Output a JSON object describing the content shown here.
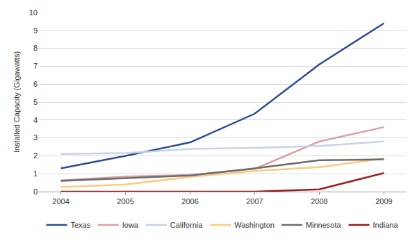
{
  "chart_data": {
    "type": "line",
    "y_label": "Installed Capacity (Gigawatts)",
    "categories": [
      "2004",
      "2005",
      "2006",
      "2007",
      "2008",
      "2009"
    ],
    "series": [
      {
        "name": "Texas",
        "color": "#2b4a96",
        "values": [
          1.3,
          2.0,
          2.75,
          4.35,
          7.1,
          9.4
        ]
      },
      {
        "name": "Iowa",
        "color": "#d9a0a4",
        "values": [
          0.63,
          0.84,
          0.93,
          1.27,
          2.8,
          3.6
        ]
      },
      {
        "name": "California",
        "color": "#c8d2e6",
        "values": [
          2.1,
          2.15,
          2.38,
          2.44,
          2.55,
          2.8
        ]
      },
      {
        "name": "Washington",
        "color": "#fdca7c",
        "values": [
          0.25,
          0.4,
          0.82,
          1.15,
          1.37,
          1.85
        ]
      },
      {
        "name": "Minnesota",
        "color": "#6b6b6b",
        "values": [
          0.6,
          0.75,
          0.9,
          1.3,
          1.75,
          1.8
        ]
      },
      {
        "name": "Indiana",
        "color": "#9c1c1c",
        "values": [
          0,
          0,
          0,
          0,
          0.13,
          1.04
        ]
      }
    ],
    "ylim": [
      0,
      10
    ],
    "yticks": [
      0,
      1,
      2,
      3,
      4,
      5,
      6,
      7,
      8,
      9,
      10
    ],
    "grid": true,
    "legend": "bottom"
  }
}
